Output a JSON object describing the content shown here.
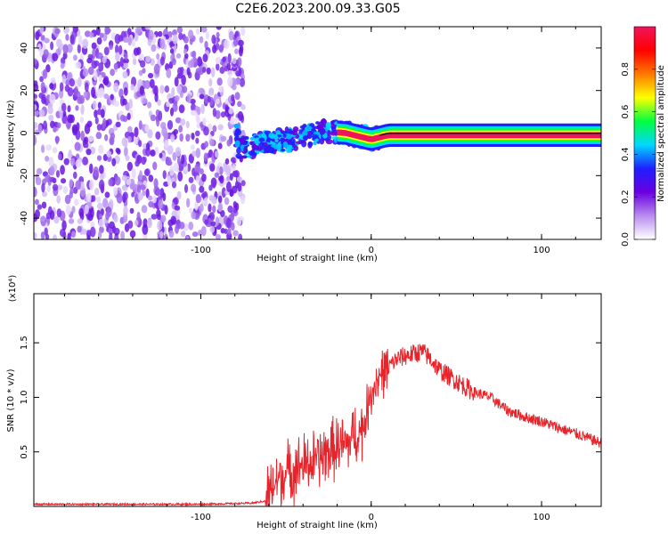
{
  "title": "C2E6.2023.200.09.33.G05",
  "chart_data": [
    {
      "type": "heatmap",
      "xlabel": "Height of straight line (km)",
      "ylabel": "Frequency (Hz)",
      "xlim": [
        -198,
        135
      ],
      "ylim": [
        -50,
        50
      ],
      "xticks": [
        -100,
        0,
        100
      ],
      "yticks": [
        -40,
        -20,
        0,
        20,
        40
      ],
      "noise_region_x": [
        -198,
        -78
      ],
      "signal_band_y": [
        -2,
        2
      ],
      "ridge_trace": [
        {
          "x": -78,
          "y": -8
        },
        {
          "x": -60,
          "y": -4
        },
        {
          "x": -45,
          "y": -3
        },
        {
          "x": -30,
          "y": 1
        },
        {
          "x": -15,
          "y": 0
        },
        {
          "x": 0,
          "y": -3
        },
        {
          "x": 10,
          "y": -1
        },
        {
          "x": 135,
          "y": -1
        }
      ],
      "colorbar": {
        "label": "Normalized spectral amplitude",
        "range": [
          0,
          1
        ],
        "ticks": [
          0.0,
          0.2,
          0.4,
          0.6,
          0.8
        ],
        "tick_labels": [
          "0.0",
          "0.2",
          "0.4",
          "0.6",
          "0.8"
        ],
        "colors": [
          "#ffffff",
          "#b98cf0",
          "#6a00e0",
          "#1f1fff",
          "#00d8ff",
          "#00ff40",
          "#ffff00",
          "#ff7800",
          "#ff0000",
          "#f0145a"
        ]
      }
    },
    {
      "type": "line",
      "xlabel": "Height of straight line (km)",
      "ylabel": "SNR (10 * v/v)",
      "scale_note": "(x10⁴)",
      "xlim": [
        -198,
        135
      ],
      "ylim": [
        0.0,
        1.95
      ],
      "xticks": [
        -100,
        0,
        100
      ],
      "yticks": [
        0.5,
        1.0,
        1.5
      ],
      "ytick_labels": [
        "0.5",
        "1.0",
        "1.5"
      ],
      "series": [
        {
          "color": "#e8232a",
          "x": [
            -198,
            -150,
            -100,
            -70,
            -62,
            -58,
            -55,
            -50,
            -45,
            -40,
            -35,
            -30,
            -25,
            -20,
            -15,
            -10,
            -5,
            0,
            5,
            10,
            15,
            20,
            25,
            30,
            35,
            40,
            50,
            60,
            70,
            80,
            90,
            100,
            110,
            120,
            130,
            135
          ],
          "y": [
            0.02,
            0.02,
            0.02,
            0.03,
            0.05,
            0.15,
            0.25,
            0.3,
            0.35,
            0.38,
            0.4,
            0.45,
            0.5,
            0.55,
            0.55,
            0.65,
            0.7,
            1.05,
            1.2,
            1.28,
            1.35,
            1.38,
            1.4,
            1.42,
            1.35,
            1.25,
            1.15,
            1.05,
            1.0,
            0.88,
            0.82,
            0.78,
            0.72,
            0.67,
            0.61,
            0.58
          ]
        }
      ]
    }
  ],
  "colors": {
    "accent_line": "#e8232a",
    "frame": "#000000"
  }
}
